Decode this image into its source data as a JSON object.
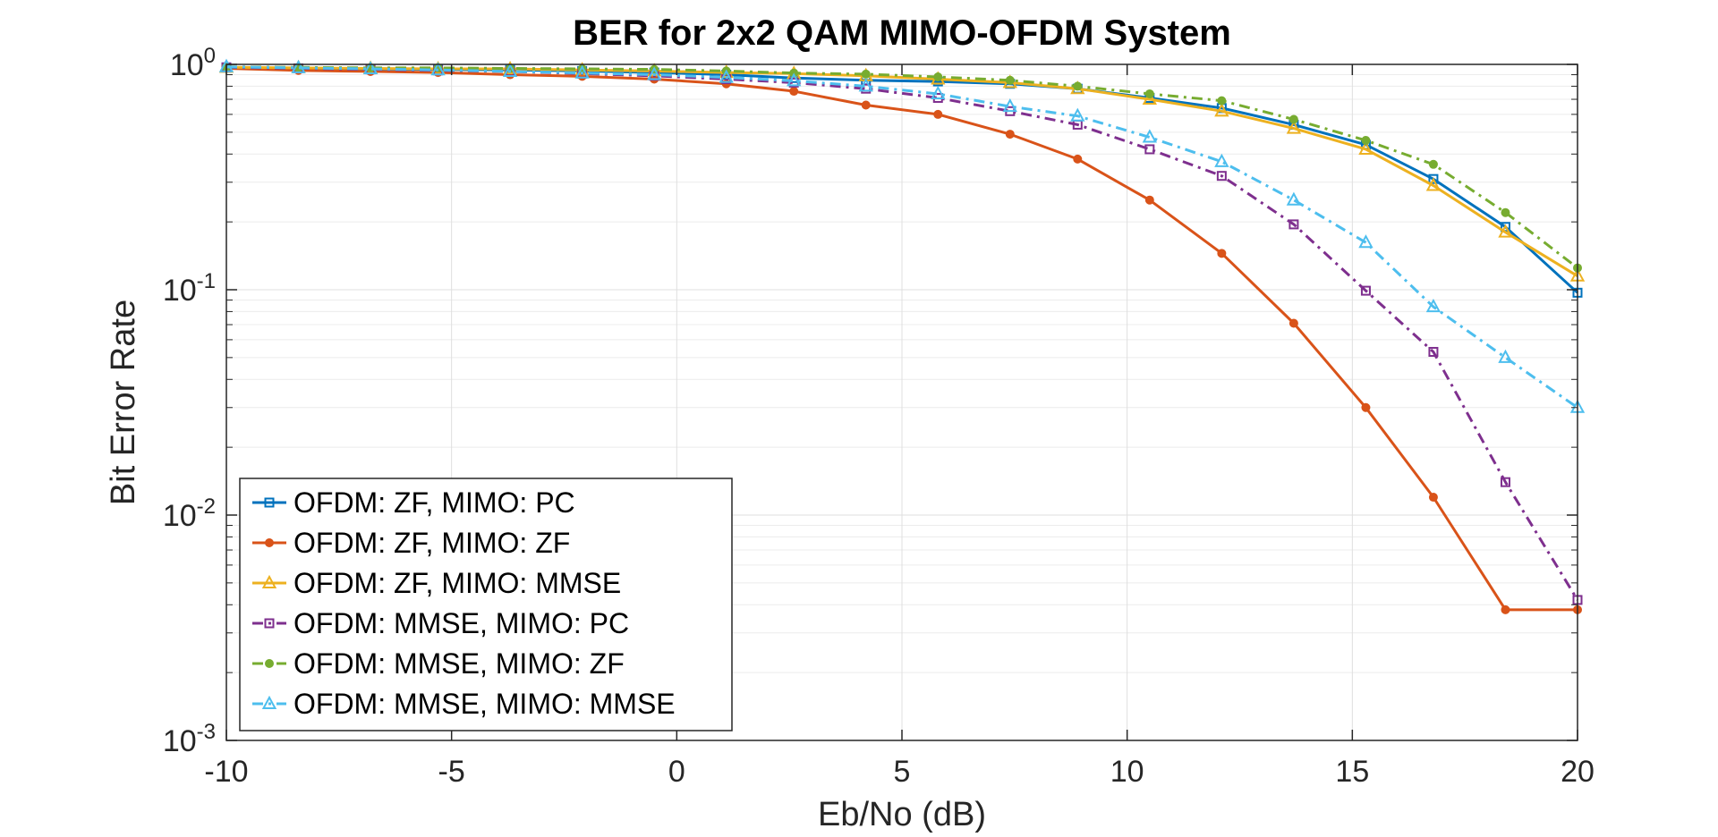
{
  "chart_data": {
    "type": "line",
    "title": "BER for 2x2 QAM MIMO-OFDM System",
    "xlabel": "Eb/No (dB)",
    "ylabel": "Bit Error Rate",
    "xlim": [
      -10,
      20
    ],
    "ylim": [
      0.001,
      1
    ],
    "yscale": "log",
    "grid": true,
    "legend_position": "bottom-left",
    "x_ticks": [
      -10,
      -5,
      0,
      5,
      10,
      15,
      20
    ],
    "x_tick_labels": [
      "-10",
      "-5",
      "0",
      "5",
      "10",
      "15",
      "20"
    ],
    "y_ticks": [
      {
        "base": "10",
        "exp": "0",
        "value": 1
      },
      {
        "base": "10",
        "exp": "-1",
        "value": 0.1
      },
      {
        "base": "10",
        "exp": "-2",
        "value": 0.01
      },
      {
        "base": "10",
        "exp": "-3",
        "value": 0.001
      }
    ],
    "x": [
      -10,
      -8.4,
      -6.8,
      -5.3,
      -3.7,
      -2.1,
      -0.5,
      1.1,
      2.6,
      4.2,
      5.8,
      7.4,
      8.9,
      10.5,
      12.1,
      13.7,
      15.3,
      16.8,
      18.4,
      20
    ],
    "series": [
      {
        "name": "OFDM: ZF, MIMO: PC",
        "color": "#0072BD",
        "dash": "solid",
        "marker": "square",
        "values": [
          0.97,
          0.96,
          0.955,
          0.95,
          0.945,
          0.935,
          0.92,
          0.9,
          0.87,
          0.85,
          0.84,
          0.82,
          0.78,
          0.71,
          0.64,
          0.54,
          0.44,
          0.31,
          0.19,
          0.097
        ]
      },
      {
        "name": "OFDM: ZF, MIMO: ZF",
        "color": "#D95319",
        "dash": "solid",
        "marker": "dot",
        "values": [
          0.96,
          0.94,
          0.93,
          0.92,
          0.9,
          0.885,
          0.86,
          0.82,
          0.76,
          0.66,
          0.6,
          0.49,
          0.38,
          0.25,
          0.145,
          0.071,
          0.03,
          0.012,
          0.0038,
          0.0038
        ]
      },
      {
        "name": "OFDM: ZF, MIMO: MMSE",
        "color": "#EDB120",
        "dash": "solid",
        "marker": "triangle",
        "values": [
          0.97,
          0.965,
          0.96,
          0.955,
          0.955,
          0.945,
          0.935,
          0.92,
          0.91,
          0.89,
          0.86,
          0.83,
          0.78,
          0.7,
          0.62,
          0.52,
          0.42,
          0.29,
          0.18,
          0.115
        ]
      },
      {
        "name": "OFDM: MMSE, MIMO: PC",
        "color": "#7E2F8E",
        "dash": "dashdot",
        "marker": "square",
        "values": [
          0.97,
          0.96,
          0.95,
          0.94,
          0.93,
          0.91,
          0.89,
          0.86,
          0.83,
          0.78,
          0.71,
          0.62,
          0.54,
          0.42,
          0.32,
          0.195,
          0.099,
          0.053,
          0.014,
          0.0042
        ]
      },
      {
        "name": "OFDM: MMSE, MIMO: ZF",
        "color": "#77AC30",
        "dash": "dashdot",
        "marker": "dot",
        "values": [
          0.975,
          0.97,
          0.965,
          0.965,
          0.96,
          0.955,
          0.95,
          0.935,
          0.915,
          0.905,
          0.88,
          0.85,
          0.8,
          0.74,
          0.69,
          0.57,
          0.46,
          0.36,
          0.22,
          0.125
        ]
      },
      {
        "name": "OFDM: MMSE, MIMO: MMSE",
        "color": "#4DBEEE",
        "dash": "dashdot",
        "marker": "triangle",
        "values": [
          0.975,
          0.965,
          0.955,
          0.945,
          0.93,
          0.915,
          0.9,
          0.875,
          0.845,
          0.8,
          0.74,
          0.65,
          0.59,
          0.475,
          0.37,
          0.25,
          0.162,
          0.084,
          0.05,
          0.03
        ]
      }
    ]
  }
}
